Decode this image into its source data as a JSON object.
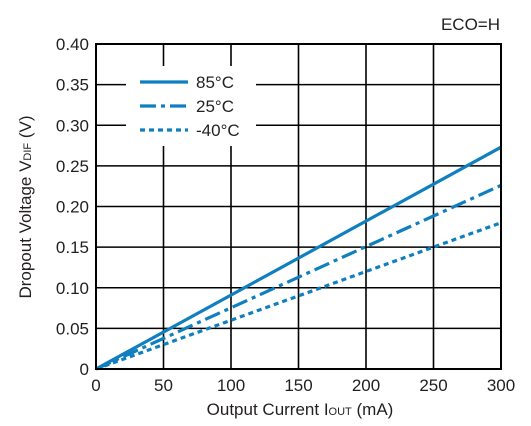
{
  "chart_data": {
    "type": "line",
    "annotation": "ECO=H",
    "xlabel": {
      "main": "Output Current I",
      "sub": "OUT",
      "unit": " (mA)"
    },
    "ylabel": {
      "main": "Dropout Voltage  V",
      "sub": "DIF",
      "unit": " (V)"
    },
    "xlim": [
      0,
      300
    ],
    "ylim": [
      0,
      0.4
    ],
    "xticks": [
      0,
      50,
      100,
      150,
      200,
      250,
      300
    ],
    "xtick_labels": [
      "0",
      "50",
      "100",
      "150",
      "200",
      "250",
      "300"
    ],
    "yticks": [
      0,
      0.05,
      0.1,
      0.15,
      0.2,
      0.25,
      0.3,
      0.35,
      0.4
    ],
    "ytick_labels": [
      "0",
      "0.05",
      "0.10",
      "0.15",
      "0.20",
      "0.25",
      "0.30",
      "0.35",
      "0.40"
    ],
    "grid": true,
    "legend_position": "top-left",
    "colors": {
      "series": "#0f7fc0",
      "grid": "#000000",
      "text": "#231f20"
    },
    "series": [
      {
        "name": "85°C",
        "style": "solid",
        "x": [
          0,
          300
        ],
        "y": [
          0.0,
          0.273
        ]
      },
      {
        "name": "25°C",
        "style": "dashdot",
        "x": [
          0,
          300
        ],
        "y": [
          0.0,
          0.226
        ]
      },
      {
        "name": "-40°C",
        "style": "dotted",
        "x": [
          0,
          300
        ],
        "y": [
          0.0,
          0.18
        ]
      }
    ]
  }
}
